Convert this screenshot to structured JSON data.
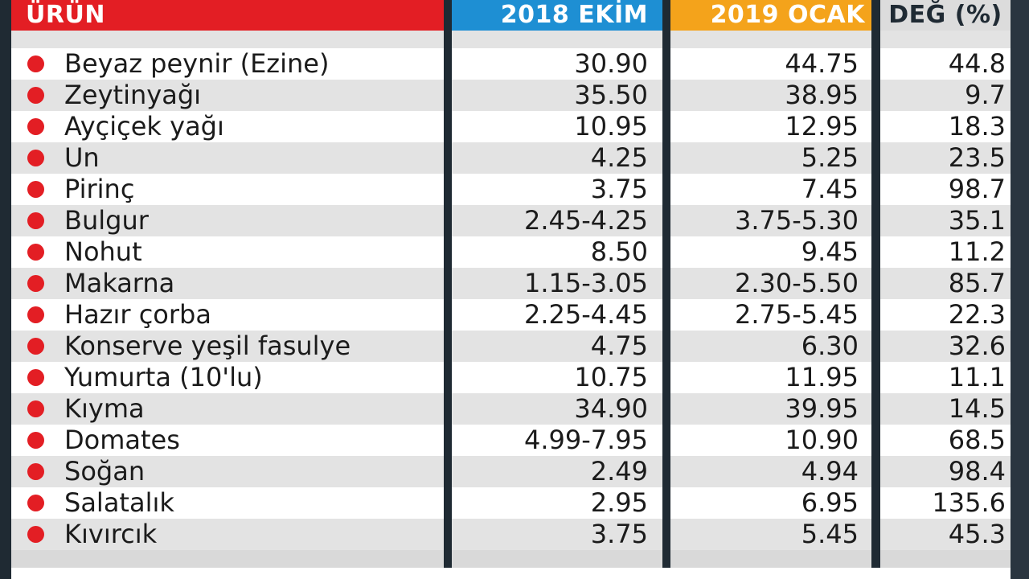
{
  "chart_data": {
    "type": "table",
    "columns": [
      "ÜRÜN",
      "2018 EKİM",
      "2019 OCAK",
      "DEĞ (%)"
    ],
    "rows": [
      [
        "Beyaz peynir (Ezine)",
        "30.90",
        "44.75",
        "44.8"
      ],
      [
        "Zeytinyağı",
        "35.50",
        "38.95",
        "9.7"
      ],
      [
        "Ayçiçek yağı",
        "10.95",
        "12.95",
        "18.3"
      ],
      [
        "Un",
        "4.25",
        "5.25",
        "23.5"
      ],
      [
        "Pirinç",
        "3.75",
        "7.45",
        "98.7"
      ],
      [
        "Bulgur",
        "2.45-4.25",
        "3.75-5.30",
        "35.1"
      ],
      [
        "Nohut",
        "8.50",
        "9.45",
        "11.2"
      ],
      [
        "Makarna",
        "1.15-3.05",
        "2.30-5.50",
        "85.7"
      ],
      [
        "Hazır çorba",
        "2.25-4.45",
        "2.75-5.45",
        "22.3"
      ],
      [
        "Konserve yeşil fasulye",
        "4.75",
        "6.30",
        "32.6"
      ],
      [
        "Yumurta (10'lu)",
        "10.75",
        "11.95",
        "11.1"
      ],
      [
        "Kıyma",
        "34.90",
        "39.95",
        "14.5"
      ],
      [
        "Domates",
        "4.99-7.95",
        "10.90",
        "68.5"
      ],
      [
        "Soğan",
        "2.49",
        "4.94",
        "98.4"
      ],
      [
        "Salatalık",
        "2.95",
        "6.95",
        "135.6"
      ],
      [
        "Kıvırcık",
        "3.75",
        "5.45",
        "45.3"
      ]
    ]
  },
  "colors": {
    "header_urun": "#e31e24",
    "header_2018": "#1e8fd3",
    "header_2019": "#f4a31b",
    "bullet": "#e31e24",
    "row_white": "#ffffff",
    "row_grey": "#e3e3e3"
  }
}
